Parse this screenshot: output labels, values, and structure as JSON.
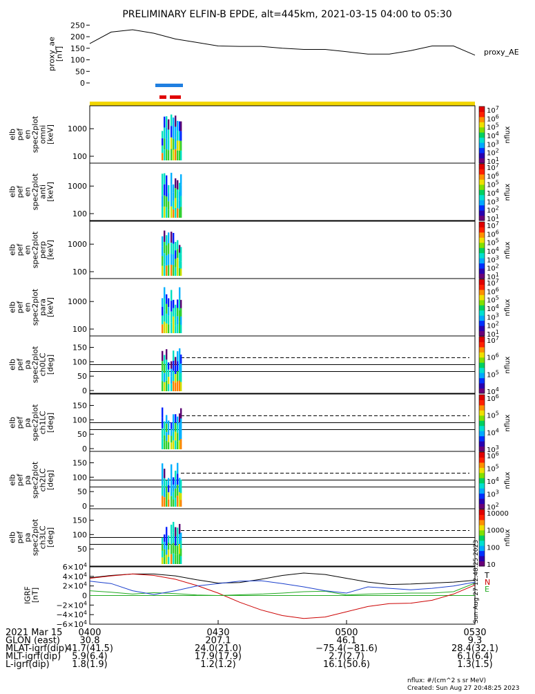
{
  "title": "PRELIMINARY ELFIN-B EPDE, alt=445km, 2021-03-15 04:00 to 05:30",
  "colors": {
    "bar_blue": "#1f7fe0",
    "bar_red": "#e00000",
    "bar_yellow": "#f2d600",
    "comp_t": "#000000",
    "comp_n": "#cc0000",
    "comp_e": "#22aa22",
    "comp_blue": "#1a3fcc"
  },
  "panels": {
    "ae": {
      "ylabel": [
        "proxy_ae",
        "[nT]"
      ],
      "yticks": [
        "250",
        "200",
        "150",
        "100",
        "50",
        "0"
      ],
      "legend": "proxy_AE"
    },
    "spectra": [
      {
        "ylabel": [
          "elb",
          "pef",
          "en",
          "spec2plot",
          "omni",
          "[keV]"
        ],
        "yticks": [
          "1000",
          "100"
        ],
        "cbar": [
          "10^7",
          "10^6",
          "10^5",
          "10^4",
          "10^3",
          "10^2",
          "10^1"
        ],
        "unit": "nflux"
      },
      {
        "ylabel": [
          "elb",
          "pef",
          "en",
          "spec2plot",
          "anti",
          "[keV]"
        ],
        "yticks": [
          "1000",
          "100"
        ],
        "cbar": [
          "10^7",
          "10^6",
          "10^5",
          "10^4",
          "10^3",
          "10^2",
          "10^1"
        ],
        "unit": "nflux"
      },
      {
        "ylabel": [
          "elb",
          "pef",
          "en",
          "spec2plot",
          "perp",
          "[keV]"
        ],
        "yticks": [
          "1000",
          "100"
        ],
        "cbar": [
          "10^7",
          "10^6",
          "10^5",
          "10^4",
          "10^3",
          "10^2",
          "10^1"
        ],
        "unit": "nflux"
      },
      {
        "ylabel": [
          "elb",
          "pef",
          "en",
          "spec2plot",
          "para",
          "[keV]"
        ],
        "yticks": [
          "1000",
          "100"
        ],
        "cbar": [
          "10^7",
          "10^6",
          "10^5",
          "10^4",
          "10^3",
          "10^2",
          "10^1"
        ],
        "unit": "nflux"
      }
    ],
    "pitch": [
      {
        "ylabel": [
          "elb",
          "pef",
          "pa",
          "spec2plot",
          "ch0LC",
          "[deg]"
        ],
        "yticks": [
          "150",
          "100",
          "50",
          "0"
        ],
        "cbar": [
          "10^7",
          "10^6",
          "10^5",
          "10^4"
        ],
        "unit": "nflux"
      },
      {
        "ylabel": [
          "elb",
          "pef",
          "pa",
          "spec2plot",
          "ch1LC",
          "[deg]"
        ],
        "yticks": [
          "150",
          "100",
          "50",
          "0"
        ],
        "cbar": [
          "10^6",
          "10^5",
          "10^4",
          "10^3"
        ],
        "unit": "nflux"
      },
      {
        "ylabel": [
          "elb",
          "pef",
          "pa",
          "spec2plot",
          "ch2LC",
          "[deg]"
        ],
        "yticks": [
          "150",
          "100",
          "50",
          "0"
        ],
        "cbar": [
          "10^6",
          "10^5",
          "10^4",
          "10^3",
          "10^2"
        ],
        "unit": "nflux"
      },
      {
        "ylabel": [
          "elb",
          "pef",
          "pa",
          "spec2plot",
          "ch3LC",
          "[deg]"
        ],
        "yticks": [
          "150",
          "100",
          "50"
        ],
        "cbar": [
          "10000",
          "1000",
          "100",
          "10"
        ],
        "unit": "nflux"
      }
    ],
    "igrf": {
      "ylabel": [
        "IGRF",
        "[nT]"
      ],
      "yticks": [
        "6×10^4",
        "4×10^4",
        "2×10^4",
        "0",
        "−2×10^4",
        "−4×10^4",
        "−6×10^4"
      ],
      "legend": [
        "T",
        "N",
        "E"
      ],
      "stamp": "Sun Aug 27 12:48:25 2023"
    }
  },
  "footer": {
    "rows": [
      {
        "label": "2021 Mar 15",
        "vals": [
          "0400",
          "0430",
          "0500",
          "0530"
        ]
      },
      {
        "label": "GLON (east)",
        "vals": [
          "30.8",
          "207.1",
          "46.1",
          "9.3"
        ]
      },
      {
        "label": "MLAT-igrf(dip)",
        "vals": [
          "41.7(41.5)",
          "24.0(21.0)",
          "−75.4(−81.6)",
          "28.4(32.1)"
        ]
      },
      {
        "label": "MLT-igrf(dip)",
        "vals": [
          "5.9(6.4)",
          "17.9(17.9)",
          "2.7(2.7)",
          "6.1(6.4)"
        ]
      },
      {
        "label": "L-igrf(dip)",
        "vals": [
          "1.8(1.9)",
          "1.2(1.2)",
          "16.1(50.6)",
          "1.3(1.5)"
        ]
      }
    ],
    "units_note": "nflux: #/(cm^2 s sr MeV)",
    "created": "Created: Sun Aug 27 20:48:25 2023"
  },
  "chart_data": [
    {
      "type": "line",
      "title": "PRELIMINARY ELFIN-B EPDE, alt=445km, 2021-03-15 04:00 to 05:30",
      "ylabel": "proxy_ae [nT]",
      "ylim": [
        0,
        260
      ],
      "x": [
        "04:00",
        "04:05",
        "04:10",
        "04:15",
        "04:20",
        "04:25",
        "04:30",
        "04:35",
        "04:40",
        "04:45",
        "04:50",
        "04:55",
        "05:00",
        "05:05",
        "05:10",
        "05:15",
        "05:20",
        "05:25",
        "05:30"
      ],
      "series": [
        {
          "name": "proxy_AE",
          "values": [
            170,
            220,
            230,
            215,
            190,
            175,
            160,
            158,
            158,
            150,
            145,
            145,
            135,
            125,
            125,
            140,
            160,
            160,
            120
          ]
        }
      ]
    },
    {
      "type": "line",
      "ylabel": "IGRF [nT]",
      "ylim": [
        -60000,
        60000
      ],
      "x": [
        "04:00",
        "04:05",
        "04:10",
        "04:15",
        "04:20",
        "04:25",
        "04:30",
        "04:35",
        "04:40",
        "04:45",
        "04:50",
        "04:55",
        "05:00",
        "05:05",
        "05:10",
        "05:15",
        "05:20",
        "05:25",
        "05:30"
      ],
      "series": [
        {
          "name": "T",
          "values": [
            37000,
            42000,
            45000,
            45000,
            41000,
            33000,
            26000,
            27000,
            34000,
            42000,
            47000,
            44000,
            36000,
            28000,
            23000,
            24000,
            26000,
            28000,
            32000
          ]
        },
        {
          "name": "N",
          "values": [
            36000,
            41000,
            45000,
            42000,
            34000,
            21000,
            5000,
            -14000,
            -30000,
            -42000,
            -48000,
            -45000,
            -34000,
            -23000,
            -17000,
            -16000,
            -10000,
            3000,
            22000
          ]
        },
        {
          "name": "E",
          "values": [
            10000,
            7000,
            3000,
            6000,
            4000,
            1000,
            0,
            1500,
            3000,
            5000,
            8000,
            9000,
            1000,
            3000,
            4000,
            5000,
            5000,
            8000,
            26000
          ]
        },
        {
          "name": "",
          "values": [
            30000,
            25000,
            10000,
            2000,
            10000,
            20000,
            25000,
            30000,
            31000,
            25000,
            18000,
            10000,
            5000,
            18000,
            15000,
            12000,
            15000,
            20000,
            28000
          ]
        }
      ]
    }
  ]
}
